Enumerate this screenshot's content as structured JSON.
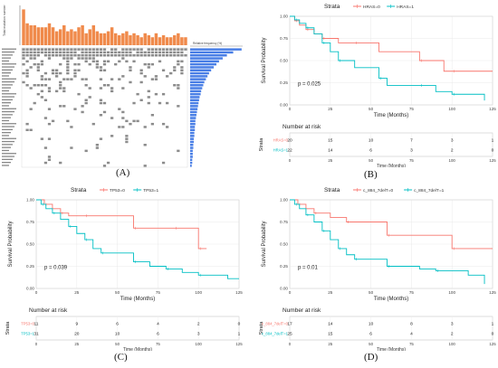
{
  "panel_labels": {
    "a": "(A)",
    "b": "(B)",
    "c": "(C)",
    "d": "(D)"
  },
  "colors": {
    "stratum0": "#f8766d",
    "stratum1": "#00bfc4",
    "bar_top": "#f08a4b",
    "bar_side": "#4a7fe6",
    "cell": "#8c8c8c"
  },
  "oncoprint": {
    "top_axis_label": "Total mutation number",
    "side_axis_label": "Relative frequency (%)",
    "top_values": [
      0.9,
      0.55,
      0.5,
      0.5,
      0.45,
      0.45,
      0.45,
      0.55,
      0.45,
      0.35,
      0.4,
      0.5,
      0.35,
      0.4,
      0.35,
      0.45,
      0.5,
      0.3,
      0.4,
      0.5,
      0.35,
      0.3,
      0.3,
      0.35,
      0.45,
      0.3,
      0.25,
      0.3,
      0.35,
      0.25,
      0.3,
      0.25,
      0.2,
      0.3,
      0.25,
      0.2,
      0.3,
      0.2,
      0.25,
      0.2,
      0.2,
      0.25,
      0.3,
      0.2,
      0.2
    ],
    "side_values": [
      0.98,
      0.82,
      0.7,
      0.62,
      0.55,
      0.5,
      0.45,
      0.4,
      0.36,
      0.33,
      0.3,
      0.27,
      0.25,
      0.23,
      0.21,
      0.2,
      0.18,
      0.17,
      0.16,
      0.15,
      0.14,
      0.13,
      0.12,
      0.11,
      0.1,
      0.1,
      0.09,
      0.09,
      0.08,
      0.08,
      0.07,
      0.07,
      0.06,
      0.06,
      0.05,
      0.05,
      0.05,
      0.04,
      0.04,
      0.03
    ]
  },
  "chart_data": [
    {
      "id": "b",
      "type": "line",
      "legend_title": "Strata",
      "legend": [
        "HRAS=0",
        "HRAS=1"
      ],
      "xlabel": "Time (Months)",
      "ylabel": "Survival Probability",
      "xlim": [
        0,
        125
      ],
      "ylim": [
        0,
        1
      ],
      "xticks": [
        0,
        25,
        50,
        75,
        100,
        125
      ],
      "yticks": [
        0.0,
        0.25,
        0.5,
        0.75,
        1.0
      ],
      "pvalue": "p = 0.025",
      "series": [
        {
          "name": "HRAS=0",
          "x": [
            0,
            3,
            6,
            10,
            15,
            20,
            30,
            40,
            55,
            80,
            95,
            100,
            125
          ],
          "y": [
            1,
            0.95,
            0.9,
            0.85,
            0.8,
            0.75,
            0.7,
            0.7,
            0.6,
            0.5,
            0.38,
            0.38,
            0.38
          ]
        },
        {
          "name": "HRAS=1",
          "x": [
            0,
            3,
            6,
            10,
            15,
            20,
            25,
            30,
            40,
            55,
            60,
            80,
            90,
            100,
            118,
            120
          ],
          "y": [
            1,
            0.96,
            0.92,
            0.87,
            0.8,
            0.7,
            0.6,
            0.5,
            0.42,
            0.3,
            0.22,
            0.22,
            0.15,
            0.12,
            0.12,
            0.05
          ]
        }
      ],
      "risk_table": {
        "title": "Number at risk",
        "axis_label": "Strata",
        "rows": [
          {
            "name": "HRAS=0",
            "values": [
              20,
              15,
              10,
              7,
              3,
              1
            ]
          },
          {
            "name": "HRAS=1",
            "values": [
              22,
              14,
              6,
              3,
              2,
              0
            ]
          }
        ],
        "xticks": [
          0,
          25,
          50,
          75,
          100,
          125
        ],
        "xlabel": "Time (Months)"
      }
    },
    {
      "id": "c",
      "type": "line",
      "legend_title": "Strata",
      "legend": [
        "TP53=0",
        "TP53=1"
      ],
      "xlabel": "Time (Months)",
      "ylabel": "Survival Probability",
      "xlim": [
        0,
        125
      ],
      "ylim": [
        0,
        1
      ],
      "xticks": [
        0,
        25,
        50,
        75,
        100,
        125
      ],
      "yticks": [
        0.0,
        0.25,
        0.5,
        0.75,
        1.0
      ],
      "pvalue": "p = 0.039",
      "series": [
        {
          "name": "TP53=0",
          "x": [
            0,
            5,
            10,
            15,
            20,
            30,
            50,
            60,
            70,
            85,
            95,
            100,
            105
          ],
          "y": [
            1,
            0.95,
            0.9,
            0.85,
            0.82,
            0.82,
            0.82,
            0.68,
            0.68,
            0.68,
            0.68,
            0.45,
            0.45
          ]
        },
        {
          "name": "TP53=1",
          "x": [
            0,
            3,
            6,
            10,
            15,
            20,
            25,
            30,
            35,
            40,
            50,
            60,
            70,
            80,
            90,
            100,
            118,
            125
          ],
          "y": [
            1,
            0.95,
            0.9,
            0.85,
            0.78,
            0.7,
            0.62,
            0.55,
            0.45,
            0.4,
            0.4,
            0.3,
            0.25,
            0.22,
            0.18,
            0.15,
            0.11,
            0.11
          ]
        }
      ],
      "risk_table": {
        "title": "Number at risk",
        "axis_label": "Strata",
        "rows": [
          {
            "name": "TP53=0",
            "values": [
              11,
              9,
              6,
              4,
              2,
              0
            ]
          },
          {
            "name": "TP53=1",
            "values": [
              31,
              20,
              10,
              6,
              3,
              1
            ]
          }
        ],
        "xticks": [
          0,
          25,
          50,
          75,
          100,
          125
        ],
        "xlabel": "Time (Months)"
      }
    },
    {
      "id": "d",
      "type": "line",
      "legend_title": "Strata",
      "legend": [
        "c_884_7delT=0",
        "c_884_7delT=1"
      ],
      "xlabel": "Time (Months)",
      "ylabel": "Survival Probability",
      "xlim": [
        0,
        125
      ],
      "ylim": [
        0,
        1
      ],
      "xticks": [
        0,
        25,
        50,
        75,
        100,
        125
      ],
      "yticks": [
        0.0,
        0.25,
        0.5,
        0.75,
        1.0
      ],
      "pvalue": "p = 0.01",
      "series": [
        {
          "name": "c_884_7delT=0",
          "x": [
            0,
            5,
            10,
            15,
            25,
            35,
            55,
            60,
            80,
            100,
            105,
            125
          ],
          "y": [
            1,
            0.95,
            0.9,
            0.85,
            0.8,
            0.75,
            0.75,
            0.6,
            0.6,
            0.45,
            0.45,
            0.45
          ]
        },
        {
          "name": "c_884_7delT=1",
          "x": [
            0,
            3,
            6,
            10,
            15,
            20,
            25,
            30,
            35,
            40,
            55,
            60,
            80,
            90,
            110,
            120
          ],
          "y": [
            1,
            0.95,
            0.9,
            0.83,
            0.75,
            0.65,
            0.55,
            0.45,
            0.38,
            0.33,
            0.33,
            0.25,
            0.22,
            0.2,
            0.15,
            0.05
          ]
        }
      ],
      "risk_table": {
        "title": "Number at risk",
        "axis_label": "Strata",
        "rows": [
          {
            "name": "c_884_7delT=0",
            "values": [
              17,
              14,
              10,
              8,
              3,
              1
            ]
          },
          {
            "name": "c_884_7delT=1",
            "values": [
              25,
              15,
              6,
              4,
              2,
              0
            ]
          }
        ],
        "xticks": [
          0,
          25,
          50,
          75,
          100,
          125
        ],
        "xlabel": "Time (Months)"
      }
    }
  ]
}
